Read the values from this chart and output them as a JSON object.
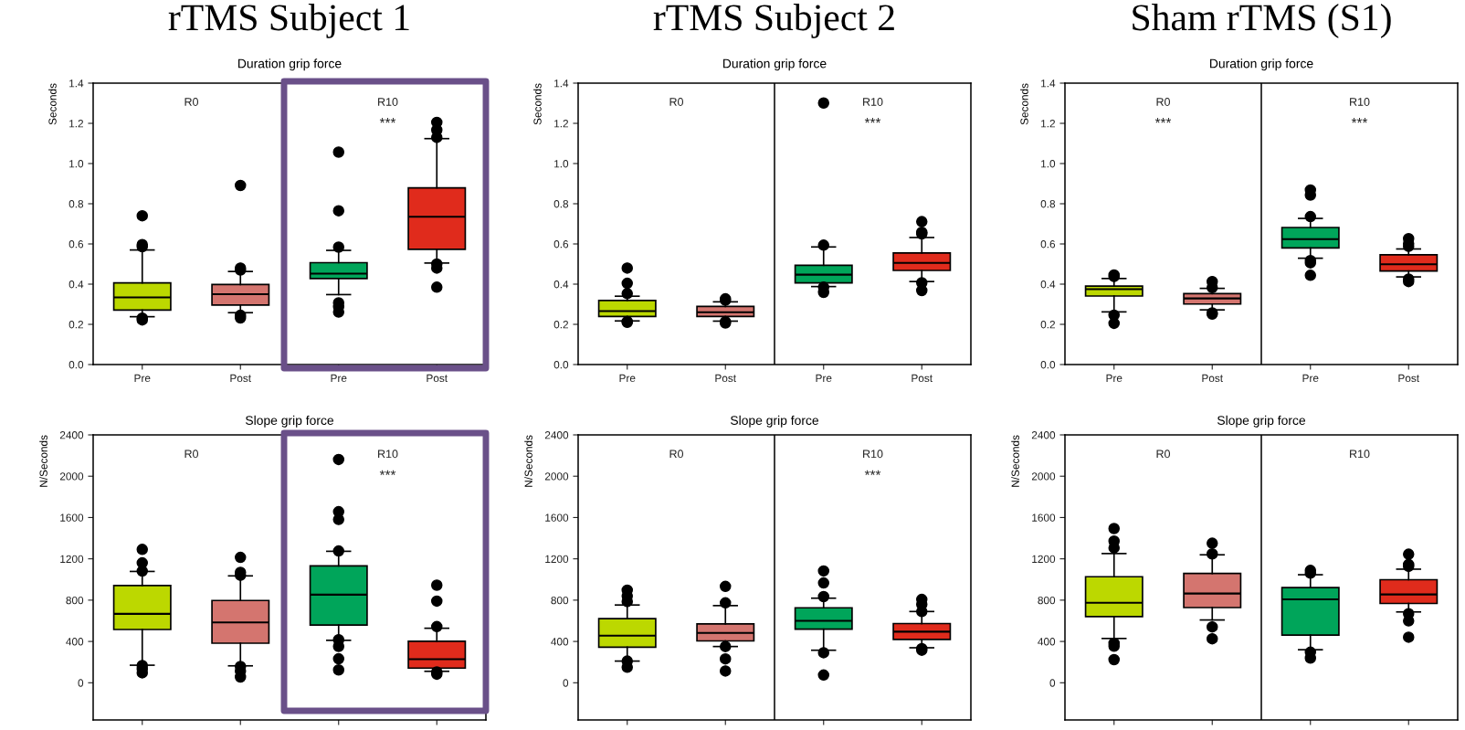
{
  "chart_data": [
    {
      "type": "box",
      "title": "rTMS Subject 1",
      "subtitle": "Duration grip force",
      "ylabel": "Seconds",
      "categories": [
        "Pre",
        "Post",
        "Pre",
        "Post"
      ],
      "colors": [
        "#bcd800",
        "#d4756f",
        "#00a55a",
        "#e02b1c"
      ],
      "ylim": [
        0,
        1.4
      ],
      "yticks": [
        {
          "value": 0,
          "label": "0.0"
        },
        {
          "value": 0.2,
          "label": "0.2"
        },
        {
          "value": 0.4,
          "label": "0.4"
        },
        {
          "value": 0.6,
          "label": "0.6"
        },
        {
          "value": 0.8,
          "label": "0.8"
        },
        {
          "value": 1.0,
          "label": "1.0"
        },
        {
          "value": 1.2,
          "label": "1.2"
        },
        {
          "value": 1.4,
          "label": "1.4"
        }
      ],
      "annotations": [
        "R0",
        "R10",
        "***"
      ],
      "boxes": [
        {
          "low": 0.238,
          "q1": 0.271,
          "median": 0.334,
          "q3": 0.406,
          "high": 0.57,
          "outliers": [
            0.74,
            0.597,
            0.586,
            0.231,
            0.222
          ]
        },
        {
          "low": 0.258,
          "q1": 0.296,
          "median": 0.35,
          "q3": 0.398,
          "high": 0.463,
          "outliers": [
            0.891,
            0.48,
            0.47,
            0.245,
            0.232
          ]
        },
        {
          "low": 0.348,
          "q1": 0.428,
          "median": 0.452,
          "q3": 0.507,
          "high": 0.568,
          "outliers": [
            1.057,
            0.765,
            0.584,
            0.307,
            0.287,
            0.261
          ]
        },
        {
          "low": 0.505,
          "q1": 0.573,
          "median": 0.735,
          "q3": 0.879,
          "high": 1.124,
          "outliers": [
            1.205,
            1.167,
            1.13,
            0.5,
            0.48,
            0.385
          ]
        }
      ]
    },
    {
      "type": "box",
      "title": "rTMS Subject 2",
      "subtitle": "Duration grip force",
      "ylabel": "Seconds",
      "categories": [
        "Pre",
        "Post",
        "Pre",
        "Post"
      ],
      "colors": [
        "#bcd800",
        "#d4756f",
        "#00a55a",
        "#e02b1c"
      ],
      "ylim": [
        0,
        1.4
      ],
      "yticks": [
        {
          "value": 0,
          "label": "0.0"
        },
        {
          "value": 0.2,
          "label": "0.2"
        },
        {
          "value": 0.4,
          "label": "0.4"
        },
        {
          "value": 0.6,
          "label": "0.6"
        },
        {
          "value": 0.8,
          "label": "0.8"
        },
        {
          "value": 1.0,
          "label": "1.0"
        },
        {
          "value": 1.2,
          "label": "1.2"
        },
        {
          "value": 1.4,
          "label": "1.4"
        }
      ],
      "annotations": [
        "R0",
        "R10",
        "***"
      ],
      "boxes": [
        {
          "low": 0.217,
          "q1": 0.239,
          "median": 0.266,
          "q3": 0.319,
          "high": 0.34,
          "outliers": [
            0.48,
            0.404,
            0.353,
            0.214,
            0.21
          ]
        },
        {
          "low": 0.216,
          "q1": 0.239,
          "median": 0.26,
          "q3": 0.289,
          "high": 0.312,
          "outliers": [
            0.327,
            0.32,
            0.213,
            0.207
          ]
        },
        {
          "low": 0.388,
          "q1": 0.406,
          "median": 0.447,
          "q3": 0.494,
          "high": 0.585,
          "outliers": [
            1.301,
            0.594,
            0.385,
            0.359
          ]
        },
        {
          "low": 0.413,
          "q1": 0.468,
          "median": 0.506,
          "q3": 0.555,
          "high": 0.632,
          "outliers": [
            0.711,
            0.658,
            0.65,
            0.407,
            0.368
          ]
        }
      ]
    },
    {
      "type": "box",
      "title": "Sham rTMS (S1)",
      "subtitle": "Duration grip force",
      "ylabel": "Seconds",
      "categories": [
        "Pre",
        "Post",
        "Pre",
        "Post"
      ],
      "colors": [
        "#bcd800",
        "#d4756f",
        "#00a55a",
        "#e02b1c"
      ],
      "ylim": [
        0,
        1.4
      ],
      "yticks": [
        {
          "value": 0,
          "label": "0.0"
        },
        {
          "value": 0.2,
          "label": "0.2"
        },
        {
          "value": 0.4,
          "label": "0.4"
        },
        {
          "value": 0.6,
          "label": "0.6"
        },
        {
          "value": 0.8,
          "label": "0.8"
        },
        {
          "value": 1.0,
          "label": "1.0"
        },
        {
          "value": 1.2,
          "label": "1.2"
        },
        {
          "value": 1.4,
          "label": "1.4"
        }
      ],
      "annotations": [
        "R0",
        "***",
        "R10",
        "***"
      ],
      "boxes": [
        {
          "low": 0.262,
          "q1": 0.341,
          "median": 0.375,
          "q3": 0.39,
          "high": 0.428,
          "outliers": [
            0.446,
            0.438,
            0.246,
            0.205
          ]
        },
        {
          "low": 0.272,
          "q1": 0.301,
          "median": 0.329,
          "q3": 0.353,
          "high": 0.379,
          "outliers": [
            0.413,
            0.383,
            0.257,
            0.251
          ]
        },
        {
          "low": 0.529,
          "q1": 0.58,
          "median": 0.624,
          "q3": 0.682,
          "high": 0.727,
          "outliers": [
            0.868,
            0.843,
            0.736,
            0.517,
            0.506,
            0.444
          ]
        },
        {
          "low": 0.436,
          "q1": 0.465,
          "median": 0.499,
          "q3": 0.546,
          "high": 0.575,
          "outliers": [
            0.626,
            0.601,
            0.588,
            0.425,
            0.413
          ]
        }
      ]
    },
    {
      "type": "box",
      "title": "Slope grip force",
      "ylabel": "N/Seconds",
      "categories": [
        null,
        null,
        null,
        null
      ],
      "colors": [
        "#bcd800",
        "#d4756f",
        "#00a55a",
        "#e02b1c"
      ],
      "ylim": [
        -360,
        2400
      ],
      "yticks": [
        0,
        400,
        800,
        1200,
        1600,
        2000,
        2400
      ],
      "annotations": [
        "R0",
        "R10",
        "***"
      ],
      "boxes": [
        {
          "low": 170,
          "q1": 516,
          "median": 667,
          "q3": 942,
          "high": 1078,
          "outliers": [
            1291,
            1161,
            1081,
            167,
            133,
            96
          ]
        },
        {
          "low": 164,
          "q1": 383,
          "median": 584,
          "q3": 797,
          "high": 1035,
          "outliers": [
            1214,
            1069,
            1041,
            158,
            114,
            56
          ]
        },
        {
          "low": 411,
          "q1": 559,
          "median": 853,
          "q3": 1131,
          "high": 1273,
          "outliers": [
            2162,
            1656,
            1581,
            1276,
            417,
            352,
            232,
            124
          ]
        },
        {
          "low": 111,
          "q1": 142,
          "median": 229,
          "q3": 402,
          "high": 528,
          "outliers": [
            945,
            791,
            544,
            105,
            83
          ]
        }
      ]
    },
    {
      "type": "box",
      "title": "Slope grip force",
      "ylabel": "N/Seconds",
      "categories": [
        null,
        null,
        null,
        null
      ],
      "colors": [
        "#bcd800",
        "#d4756f",
        "#00a55a",
        "#e02b1c"
      ],
      "ylim": [
        -360,
        2400
      ],
      "yticks": [
        0,
        400,
        800,
        1200,
        1600,
        2000,
        2400
      ],
      "annotations": [
        "R0",
        "R10",
        "***"
      ],
      "boxes": [
        {
          "low": 210,
          "q1": 345,
          "median": 456,
          "q3": 621,
          "high": 753,
          "outliers": [
            897,
            840,
            786,
            210,
            150
          ]
        },
        {
          "low": 351,
          "q1": 405,
          "median": 483,
          "q3": 570,
          "high": 747,
          "outliers": [
            933,
            774,
            351,
            231,
            114
          ]
        },
        {
          "low": 315,
          "q1": 519,
          "median": 600,
          "q3": 726,
          "high": 819,
          "outliers": [
            1083,
            966,
            834,
            291,
            75
          ]
        },
        {
          "low": 339,
          "q1": 420,
          "median": 495,
          "q3": 573,
          "high": 690,
          "outliers": [
            807,
            759,
            690,
            330,
            315
          ]
        }
      ]
    },
    {
      "type": "box",
      "title": "Slope grip force",
      "ylabel": "N/Seconds",
      "categories": [
        null,
        null,
        null,
        null
      ],
      "colors": [
        "#bcd800",
        "#d4756f",
        "#00a55a",
        "#e02b1c"
      ],
      "ylim": [
        -360,
        2400
      ],
      "yticks": [
        0,
        400,
        800,
        1200,
        1600,
        2000,
        2400
      ],
      "annotations": [
        "R0",
        "R10"
      ],
      "boxes": [
        {
          "low": 429,
          "q1": 641,
          "median": 774,
          "q3": 1027,
          "high": 1251,
          "outliers": [
            1493,
            1372,
            1306,
            384,
            354,
            224
          ]
        },
        {
          "low": 608,
          "q1": 728,
          "median": 864,
          "q3": 1058,
          "high": 1239,
          "outliers": [
            1351,
            1248,
            541,
            426
          ]
        },
        {
          "low": 320,
          "q1": 462,
          "median": 807,
          "q3": 922,
          "high": 1046,
          "outliers": [
            1088,
            1061,
            296,
            239
          ]
        },
        {
          "low": 686,
          "q1": 768,
          "median": 855,
          "q3": 998,
          "high": 1100,
          "outliers": [
            1245,
            1145,
            1127,
            668,
            599,
            441
          ]
        }
      ]
    }
  ]
}
